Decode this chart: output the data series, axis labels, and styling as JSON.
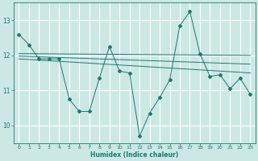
{
  "xlabel": "Humidex (Indice chaleur)",
  "background_color": "#cce8e4",
  "grid_color": "#ffffff",
  "line_color": "#1a7a6e",
  "xlim": [
    -0.5,
    23.5
  ],
  "ylim": [
    9.5,
    13.5
  ],
  "yticks": [
    10,
    11,
    12,
    13
  ],
  "xticks": [
    0,
    1,
    2,
    3,
    4,
    5,
    6,
    7,
    8,
    9,
    10,
    11,
    12,
    13,
    14,
    15,
    16,
    17,
    18,
    19,
    20,
    21,
    22,
    23
  ],
  "main_x": [
    0,
    1,
    2,
    3,
    4,
    5,
    6,
    7,
    8,
    9,
    10,
    11,
    12,
    13,
    14,
    15,
    16,
    17,
    18,
    19,
    20,
    21,
    22,
    23
  ],
  "main_y": [
    12.6,
    12.3,
    11.9,
    11.9,
    11.9,
    10.75,
    10.4,
    10.4,
    11.35,
    12.25,
    11.55,
    11.5,
    9.7,
    10.35,
    10.8,
    11.3,
    12.85,
    13.25,
    12.05,
    11.4,
    11.45,
    11.05,
    11.35,
    10.9
  ],
  "trend1_x": [
    0,
    23
  ],
  "trend1_y": [
    12.05,
    12.0
  ],
  "trend2_x": [
    0,
    23
  ],
  "trend2_y": [
    11.98,
    11.75
  ],
  "trend3_x": [
    0,
    23
  ],
  "trend3_y": [
    11.9,
    11.5
  ]
}
